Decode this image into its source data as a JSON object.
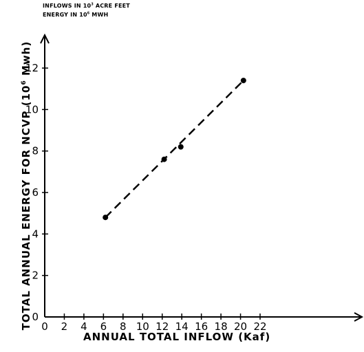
{
  "annotations": {
    "inflow_prefix": "INFLOWS IN 10",
    "inflow_exp": "3",
    "inflow_suffix": " ACRE FEET",
    "energy_prefix": "ENERGY IN 10",
    "energy_exp": "6",
    "energy_suffix": " MWH"
  },
  "chart_data": {
    "type": "scatter",
    "xlabel": "ANNUAL TOTAL INFLOW (Kaf)",
    "ylabel_prefix": "TOTAL ANNUAL ENERGY FOR NCVP (10",
    "ylabel_exp": "6",
    "ylabel_suffix": " Mwh)",
    "xlim": [
      0,
      22
    ],
    "ylim": [
      0,
      12
    ],
    "x_ticks": [
      "0",
      "2",
      "4",
      "6",
      "8",
      "10",
      "12",
      "14",
      "16",
      "18",
      "20",
      "22"
    ],
    "y_ticks": [
      "0",
      "2",
      "4",
      "6",
      "8",
      "10",
      "12"
    ],
    "grid": false,
    "points": [
      {
        "x": 6.2,
        "y": 4.8
      },
      {
        "x": 12.2,
        "y": 7.6
      },
      {
        "x": 13.9,
        "y": 8.2
      },
      {
        "x": 20.3,
        "y": 11.4
      }
    ],
    "trend_line": {
      "style": "dashed",
      "from": {
        "x": 6.2,
        "y": 4.8
      },
      "to": {
        "x": 20.3,
        "y": 11.4
      }
    }
  }
}
